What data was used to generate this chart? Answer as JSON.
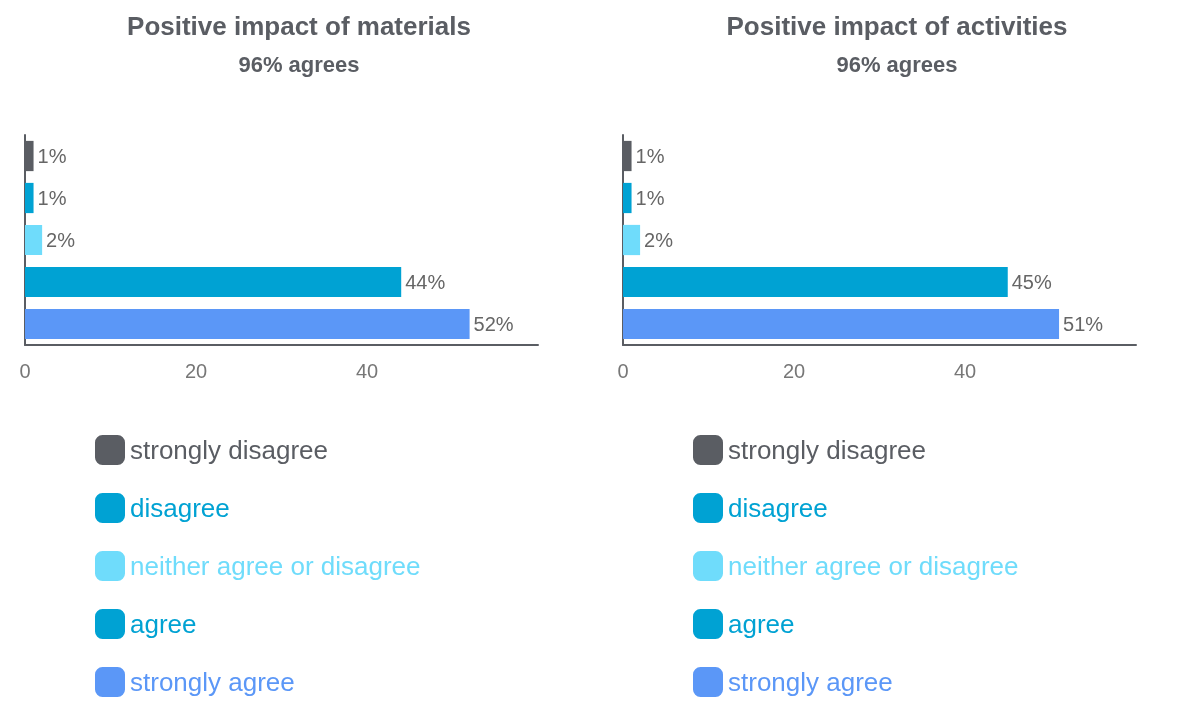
{
  "chart_data": [
    {
      "type": "bar",
      "orientation": "horizontal",
      "stacked": true,
      "title": "Positive impact of materials",
      "subtitle": "96% agrees",
      "categories": [
        null,
        null,
        null,
        null,
        null
      ],
      "xlim": [
        0,
        60
      ],
      "xticks": [
        0,
        20,
        40
      ],
      "tick_labels": "x",
      "grid": false,
      "legend": "bottom",
      "series": [
        {
          "name": "strongly disagree",
          "color": "#5a5d63",
          "values": [
            1,
            null,
            null,
            null,
            null
          ],
          "value_labels": [
            "1%",
            null,
            null,
            null,
            null
          ]
        },
        {
          "name": "disagree",
          "color": "#00a2d3",
          "values": [
            null,
            1,
            null,
            null,
            null
          ],
          "value_labels": [
            null,
            "1%",
            null,
            null,
            null
          ]
        },
        {
          "name": "neither agree or disagree",
          "color": "#6fdcfb",
          "values": [
            null,
            null,
            2,
            null,
            null
          ],
          "value_labels": [
            null,
            null,
            "2%",
            null,
            null
          ]
        },
        {
          "name": "agree",
          "color": "#00a2d3",
          "values": [
            null,
            null,
            null,
            44,
            null
          ],
          "value_labels": [
            null,
            null,
            null,
            "44%",
            null
          ]
        },
        {
          "name": "strongly agree",
          "color": "#5b97f7",
          "values": [
            null,
            null,
            null,
            null,
            52
          ],
          "value_labels": [
            null,
            null,
            null,
            null,
            "52%"
          ]
        }
      ]
    },
    {
      "type": "bar",
      "orientation": "horizontal",
      "stacked": true,
      "title": "Positive impact of activities",
      "subtitle": "96% agrees",
      "categories": [
        null,
        null,
        null,
        null,
        null
      ],
      "xlim": [
        0,
        60
      ],
      "xticks": [
        0,
        20,
        40
      ],
      "tick_labels": "x",
      "grid": false,
      "legend": "bottom",
      "series": [
        {
          "name": "strongly disagree",
          "color": "#5a5d63",
          "values": [
            1,
            null,
            null,
            null,
            null
          ],
          "value_labels": [
            "1%",
            null,
            null,
            null,
            null
          ]
        },
        {
          "name": "disagree",
          "color": "#00a2d3",
          "values": [
            null,
            1,
            null,
            null,
            null
          ],
          "value_labels": [
            null,
            "1%",
            null,
            null,
            null
          ]
        },
        {
          "name": "neither agree or disagree",
          "color": "#6fdcfb",
          "values": [
            null,
            null,
            2,
            null,
            null
          ],
          "value_labels": [
            null,
            null,
            "2%",
            null,
            null
          ]
        },
        {
          "name": "agree",
          "color": "#00a2d3",
          "values": [
            null,
            null,
            null,
            45,
            null
          ],
          "value_labels": [
            null,
            null,
            null,
            "45%",
            null
          ]
        },
        {
          "name": "strongly agree",
          "color": "#5b97f7",
          "values": [
            null,
            null,
            null,
            null,
            51
          ],
          "value_labels": [
            null,
            null,
            null,
            null,
            "51%"
          ]
        }
      ]
    }
  ]
}
